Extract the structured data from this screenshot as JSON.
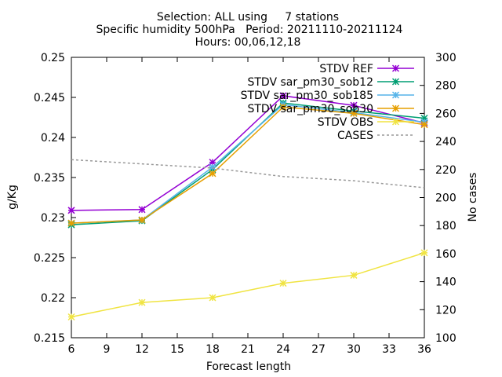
{
  "chart_data": {
    "type": "line",
    "title_lines": [
      "Selection: ALL using     7 stations",
      "Specific humidity 500hPa   Period: 20211110-20211124",
      "Hours: 00,06,12,18"
    ],
    "xlabel": "Forecast length",
    "ylabel": "g/Kg",
    "y2label": "No cases",
    "x": [
      6,
      12,
      18,
      24,
      30,
      36
    ],
    "xlim": [
      6,
      36
    ],
    "xticks": [
      "6",
      "9",
      "12",
      "15",
      "18",
      "21",
      "24",
      "27",
      "30",
      "33",
      "36"
    ],
    "ylim": [
      0.215,
      0.25
    ],
    "yticks": [
      "0.215",
      "0.22",
      "0.225",
      "0.23",
      "0.235",
      "0.24",
      "0.245",
      "0.25"
    ],
    "y2lim": [
      100,
      300
    ],
    "y2ticks": [
      "100",
      "120",
      "140",
      "160",
      "180",
      "200",
      "220",
      "240",
      "260",
      "280",
      "300"
    ],
    "grid": false,
    "legend_position": "top-right",
    "series": [
      {
        "name": "STDV REF",
        "color": "#9400d3",
        "marker": "x",
        "axis": "y1",
        "values": [
          0.2309,
          0.231,
          0.2369,
          0.2452,
          0.244,
          0.2418
        ]
      },
      {
        "name": "STDV sar_pm30_sob12",
        "color": "#009e73",
        "marker": "x",
        "axis": "y1",
        "values": [
          0.2291,
          0.2296,
          0.236,
          0.2443,
          0.2433,
          0.2424
        ]
      },
      {
        "name": "STDV sar_pm30_sob185",
        "color": "#56b4e9",
        "marker": "x",
        "axis": "y1",
        "values": [
          0.2293,
          0.2297,
          0.2363,
          0.2441,
          0.2431,
          0.2419
        ]
      },
      {
        "name": "STDV sar_pm30_sob30",
        "color": "#e69f00",
        "marker": "x",
        "axis": "y1",
        "values": [
          0.2293,
          0.2297,
          0.2355,
          0.2438,
          0.243,
          0.2416
        ]
      },
      {
        "name": "STDV OBS",
        "color": "#f0e442",
        "marker": "x",
        "axis": "y1",
        "values": [
          0.2176,
          0.2194,
          0.22,
          0.2218,
          0.2228,
          0.2256
        ]
      },
      {
        "name": "CASES",
        "color": "#999999",
        "marker": "none",
        "dashed": true,
        "axis": "y2",
        "values": [
          227,
          224,
          221,
          215,
          212,
          207
        ]
      }
    ]
  }
}
